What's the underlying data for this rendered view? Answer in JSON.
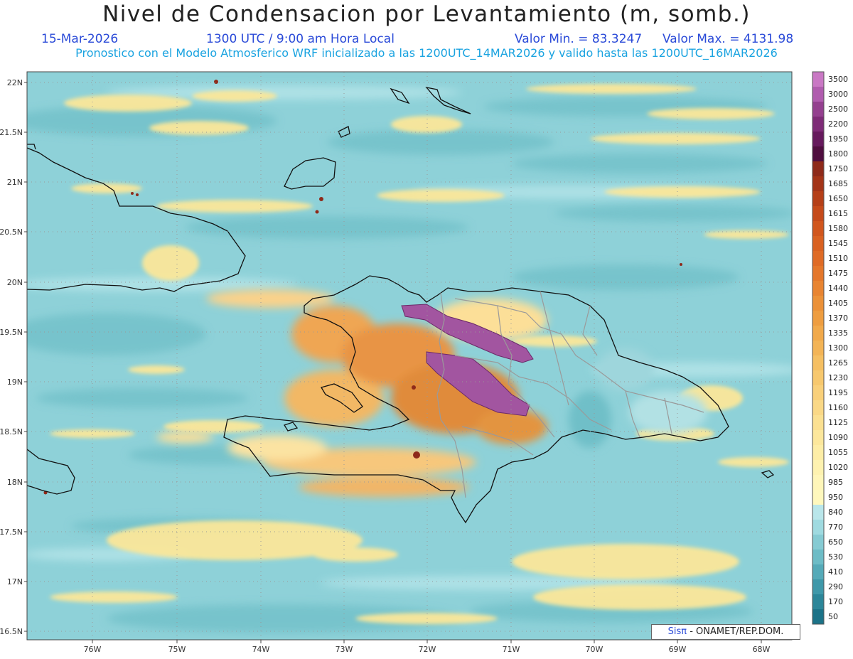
{
  "title": "Nivel de Condensacion por Levantamiento (m, somb.)",
  "date": "15-Mar-2026",
  "time": "1300 UTC / 9:00 am Hora Local",
  "min_label": "Valor Min. = 83.3247",
  "max_label": "Valor Max. = 4131.98",
  "forecast_line": "Pronostico con el Modelo Atmosferico WRF inicializado a las 1200UTC_14MAR2026 y valido hasta las  1200UTC_16MAR2026",
  "credit_brand": "Sisπ",
  "credit_text": " - ONAMET/REP.DOM.",
  "axes": {
    "lat_labels": [
      "22N",
      "21.5N",
      "21N",
      "20.5N",
      "20N",
      "19.5N",
      "19N",
      "18.5N",
      "18N",
      "17.5N",
      "17N",
      "16.5N"
    ],
    "lon_labels": [
      "76W",
      "75W",
      "74W",
      "73W",
      "72W",
      "71W",
      "70W",
      "69W",
      "68W"
    ]
  },
  "colorbar": {
    "labels": [
      "3500",
      "3000",
      "2500",
      "2200",
      "1950",
      "1800",
      "1750",
      "1685",
      "1650",
      "1615",
      "1580",
      "1545",
      "1510",
      "1475",
      "1440",
      "1405",
      "1370",
      "1335",
      "1300",
      "1265",
      "1230",
      "1195",
      "1160",
      "1125",
      "1090",
      "1055",
      "1020",
      "985",
      "950",
      "840",
      "770",
      "650",
      "530",
      "410",
      "290",
      "170",
      "50"
    ],
    "colors": [
      "#c978c4",
      "#b05cae",
      "#94408f",
      "#7e2b77",
      "#661a5d",
      "#4f0e3f",
      "#8e2a1a",
      "#a33418",
      "#b53f18",
      "#c54a1a",
      "#d1561d",
      "#d96121",
      "#df6b26",
      "#e4772b",
      "#e88431",
      "#eb9138",
      "#ee9d40",
      "#f1a94a",
      "#f3b456",
      "#f5bf62",
      "#f7c86e",
      "#f9d07a",
      "#fad886",
      "#fbe091",
      "#fce79c",
      "#fdeda6",
      "#fef2b0",
      "#fff6b9",
      "#fff8bd",
      "#b9e6ea",
      "#9fdae0",
      "#86cbd3",
      "#6dbcc6",
      "#55aab8",
      "#3f98a9",
      "#2c8699",
      "#1c7388"
    ]
  },
  "colors": {
    "ocean_base": "#8ed1d8",
    "land_high": "#d4772c",
    "peak": "#9a3f96",
    "coast": "#111111",
    "border": "#9a9a9a"
  }
}
